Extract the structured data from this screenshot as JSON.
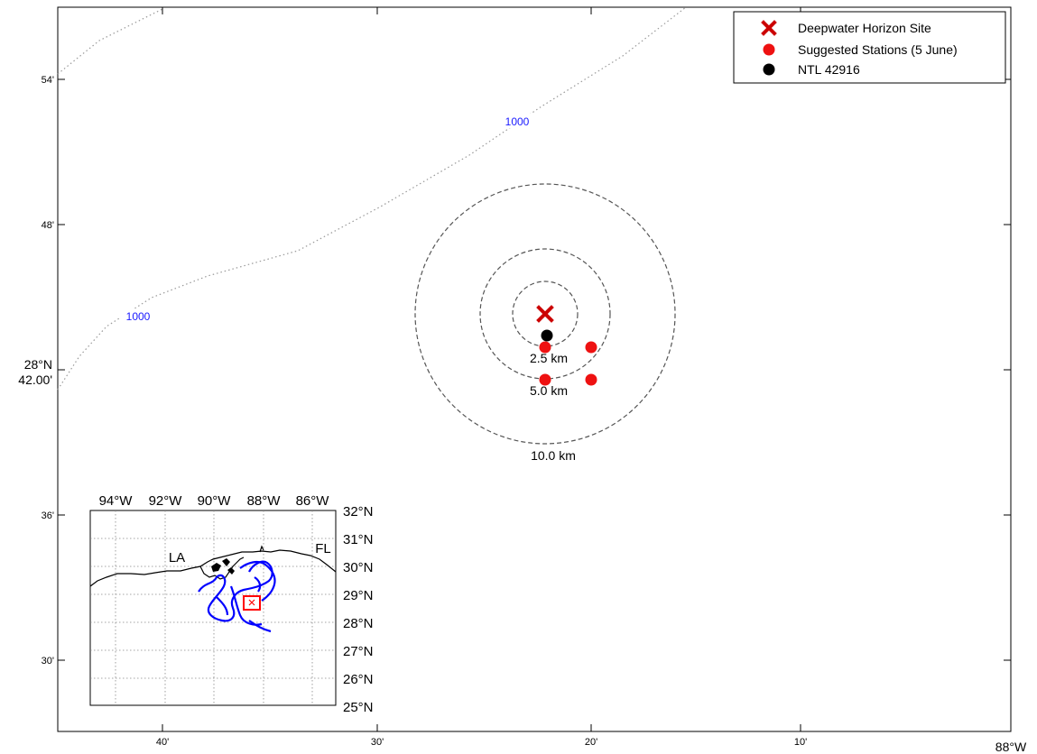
{
  "map": {
    "x_ticks": [
      "40'",
      "30'",
      "20'",
      "10'"
    ],
    "y_ticks": [
      "54'",
      "48'",
      "36'",
      "30'"
    ],
    "y_mid_label": [
      "28°N",
      "42.00'"
    ],
    "x_corner_label": "88°W",
    "contour_labels": [
      "1000",
      "1000"
    ],
    "contour_color": "#1a1aff",
    "rings": [
      {
        "label": "2.5 km"
      },
      {
        "label": "5.0 km"
      },
      {
        "label": "10.0 km"
      }
    ],
    "site_color": "#cc0000",
    "stations_color": "#ee1111",
    "ntl_color": "#000000"
  },
  "legend": {
    "items": [
      {
        "label": "Deepwater Horizon Site",
        "symbol": "x-marker",
        "color": "#cc0000"
      },
      {
        "label": "Suggested Stations (5 June)",
        "symbol": "dot",
        "color": "#ee1111"
      },
      {
        "label": "NTL 42916",
        "symbol": "dot",
        "color": "#000000"
      }
    ]
  },
  "inset": {
    "top_labels": [
      "94°W",
      "92°W",
      "90°W",
      "88°W",
      "86°W"
    ],
    "right_labels": [
      "32°N",
      "31°N",
      "30°N",
      "29°N",
      "28°N",
      "27°N",
      "26°N",
      "25°N"
    ],
    "state_labels": [
      "LA",
      "FL"
    ],
    "slick_color": "#0000ff",
    "box_color": "#ff0000"
  }
}
